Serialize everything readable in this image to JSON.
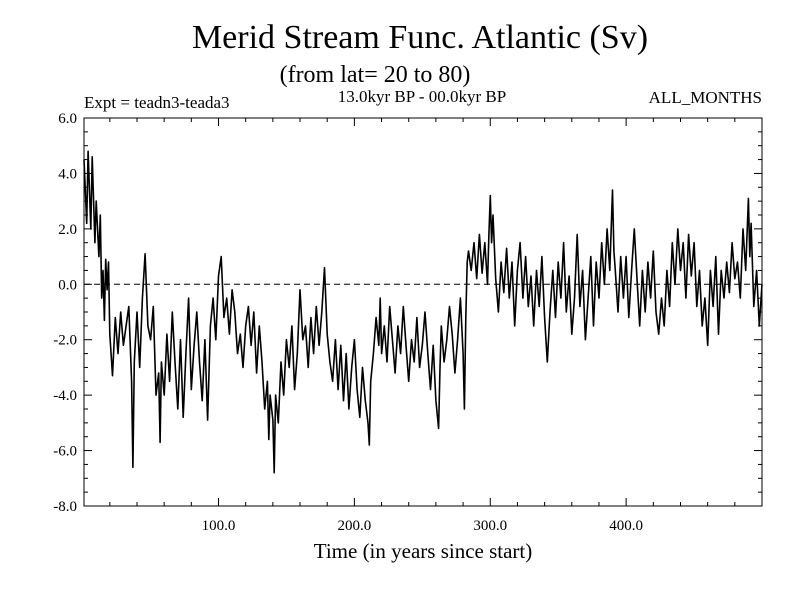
{
  "chart_data": {
    "type": "line",
    "title": "Merid Stream Func. Atlantic (Sv)",
    "subtitle": "(from lat= 20 to 80)",
    "experiment_label": "Expt = teadn3-teada3",
    "period_label": "13.0kyr BP - 00.0kyr BP",
    "months_label": "ALL_MONTHS",
    "xlabel": "Time (in years since start)",
    "ylabel": "",
    "xlim": [
      1,
      500
    ],
    "ylim": [
      -8,
      6
    ],
    "x_ticks": [
      {
        "value": 100,
        "label": "100.0"
      },
      {
        "value": 200,
        "label": "200.0"
      },
      {
        "value": 300,
        "label": "300.0"
      },
      {
        "value": 400,
        "label": "400.0"
      }
    ],
    "y_ticks": [
      {
        "value": 6,
        "label": "6.0"
      },
      {
        "value": 4,
        "label": "4.0"
      },
      {
        "value": 2,
        "label": "2.0"
      },
      {
        "value": 0,
        "label": "0.0"
      },
      {
        "value": -2,
        "label": "-2.0"
      },
      {
        "value": -4,
        "label": "-4.0"
      },
      {
        "value": -6,
        "label": "-6.0"
      },
      {
        "value": -8,
        "label": "-8.0"
      }
    ],
    "reference_line": {
      "y": 0,
      "style": "dashed"
    },
    "series": [
      {
        "name": "teadn3-teada3",
        "color": "#000000",
        "anchors": [
          [
            1,
            4.5
          ],
          [
            3,
            2.2
          ],
          [
            4,
            4.8
          ],
          [
            6,
            2.0
          ],
          [
            7,
            4.6
          ],
          [
            9,
            1.5
          ],
          [
            10,
            3.0
          ],
          [
            12,
            1.0
          ],
          [
            13,
            2.5
          ],
          [
            14,
            -0.5
          ],
          [
            15,
            0.5
          ],
          [
            16,
            -1.3
          ],
          [
            17,
            0.9
          ],
          [
            18,
            -0.2
          ],
          [
            19,
            0.8
          ],
          [
            20,
            -1.8
          ],
          [
            22,
            -3.3
          ],
          [
            24,
            -1.2
          ],
          [
            26,
            -2.5
          ],
          [
            28,
            -1.0
          ],
          [
            30,
            -2.2
          ],
          [
            32,
            -1.5
          ],
          [
            34,
            -0.8
          ],
          [
            36,
            -3.5
          ],
          [
            37,
            -6.6
          ],
          [
            38,
            -2.8
          ],
          [
            40,
            -1.0
          ],
          [
            42,
            -3.0
          ],
          [
            44,
            -0.5
          ],
          [
            46,
            1.1
          ],
          [
            48,
            -1.5
          ],
          [
            50,
            -2.0
          ],
          [
            52,
            -0.8
          ],
          [
            54,
            -4.0
          ],
          [
            56,
            -3.2
          ],
          [
            57,
            -5.7
          ],
          [
            58,
            -2.8
          ],
          [
            60,
            -4.0
          ],
          [
            62,
            -1.8
          ],
          [
            64,
            -3.5
          ],
          [
            66,
            -1.0
          ],
          [
            68,
            -2.8
          ],
          [
            70,
            -4.5
          ],
          [
            72,
            -2.0
          ],
          [
            74,
            -4.8
          ],
          [
            76,
            -2.5
          ],
          [
            78,
            -0.5
          ],
          [
            80,
            -3.8
          ],
          [
            82,
            -2.2
          ],
          [
            84,
            -1.0
          ],
          [
            86,
            -2.8
          ],
          [
            88,
            -4.2
          ],
          [
            90,
            -2.0
          ],
          [
            92,
            -4.9
          ],
          [
            94,
            -1.5
          ],
          [
            96,
            -0.5
          ],
          [
            98,
            -2.0
          ],
          [
            100,
            0.3
          ],
          [
            102,
            1.0
          ],
          [
            104,
            -1.2
          ],
          [
            106,
            -0.5
          ],
          [
            108,
            -1.8
          ],
          [
            110,
            -0.2
          ],
          [
            112,
            -1.0
          ],
          [
            114,
            -2.5
          ],
          [
            116,
            -1.8
          ],
          [
            118,
            -3.0
          ],
          [
            120,
            -1.5
          ],
          [
            122,
            -0.8
          ],
          [
            124,
            -2.2
          ],
          [
            126,
            -1.0
          ],
          [
            128,
            -3.2
          ],
          [
            130,
            -1.5
          ],
          [
            132,
            -2.8
          ],
          [
            134,
            -4.5
          ],
          [
            136,
            -3.5
          ],
          [
            137,
            -5.6
          ],
          [
            138,
            -4.0
          ],
          [
            140,
            -4.9
          ],
          [
            141,
            -6.8
          ],
          [
            142,
            -4.0
          ],
          [
            144,
            -5.0
          ],
          [
            146,
            -2.8
          ],
          [
            148,
            -4.0
          ],
          [
            150,
            -2.0
          ],
          [
            152,
            -3.0
          ],
          [
            154,
            -1.5
          ],
          [
            156,
            -3.8
          ],
          [
            158,
            -2.5
          ],
          [
            160,
            -0.2
          ],
          [
            162,
            -2.0
          ],
          [
            164,
            -1.5
          ],
          [
            166,
            -3.0
          ],
          [
            168,
            -1.2
          ],
          [
            170,
            -2.5
          ],
          [
            172,
            -0.8
          ],
          [
            174,
            -2.2
          ],
          [
            176,
            -1.0
          ],
          [
            178,
            0.6
          ],
          [
            180,
            -1.8
          ],
          [
            182,
            -2.8
          ],
          [
            184,
            -3.5
          ],
          [
            186,
            -2.0
          ],
          [
            188,
            -3.8
          ],
          [
            190,
            -2.2
          ],
          [
            192,
            -4.2
          ],
          [
            194,
            -2.5
          ],
          [
            196,
            -4.5
          ],
          [
            198,
            -3.0
          ],
          [
            200,
            -2.0
          ],
          [
            202,
            -3.8
          ],
          [
            204,
            -4.8
          ],
          [
            206,
            -3.0
          ],
          [
            208,
            -4.2
          ],
          [
            210,
            -5.0
          ],
          [
            211,
            -5.8
          ],
          [
            212,
            -3.5
          ],
          [
            214,
            -2.5
          ],
          [
            216,
            -1.2
          ],
          [
            218,
            -2.2
          ],
          [
            219,
            -0.5
          ],
          [
            220,
            -2.5
          ],
          [
            222,
            -1.5
          ],
          [
            224,
            -2.8
          ],
          [
            226,
            -0.8
          ],
          [
            228,
            -2.0
          ],
          [
            230,
            -3.2
          ],
          [
            232,
            -1.5
          ],
          [
            234,
            -2.5
          ],
          [
            236,
            -0.8
          ],
          [
            238,
            -2.2
          ],
          [
            240,
            -3.5
          ],
          [
            242,
            -2.0
          ],
          [
            244,
            -2.8
          ],
          [
            246,
            -1.2
          ],
          [
            248,
            -3.0
          ],
          [
            250,
            -2.2
          ],
          [
            252,
            -1.0
          ],
          [
            254,
            -2.5
          ],
          [
            256,
            -3.8
          ],
          [
            258,
            -2.2
          ],
          [
            260,
            -4.2
          ],
          [
            262,
            -5.2
          ],
          [
            263,
            -3.0
          ],
          [
            264,
            -1.5
          ],
          [
            266,
            -2.8
          ],
          [
            268,
            -2.0
          ],
          [
            270,
            -0.8
          ],
          [
            272,
            -1.8
          ],
          [
            274,
            -3.2
          ],
          [
            276,
            -2.0
          ],
          [
            278,
            -0.5
          ],
          [
            280,
            -2.5
          ],
          [
            281,
            -4.5
          ],
          [
            282,
            -1.2
          ],
          [
            283,
            0.8
          ],
          [
            284,
            1.2
          ],
          [
            286,
            0.5
          ],
          [
            288,
            1.5
          ],
          [
            290,
            0.2
          ],
          [
            292,
            1.8
          ],
          [
            294,
            0.4
          ],
          [
            296,
            1.5
          ],
          [
            298,
            0.0
          ],
          [
            299,
            1.8
          ],
          [
            300,
            3.2
          ],
          [
            301,
            1.5
          ],
          [
            302,
            2.5
          ],
          [
            304,
            0.2
          ],
          [
            306,
            -1.0
          ],
          [
            308,
            0.8
          ],
          [
            310,
            -0.3
          ],
          [
            312,
            1.3
          ],
          [
            314,
            -0.5
          ],
          [
            316,
            0.8
          ],
          [
            318,
            -1.5
          ],
          [
            320,
            0.5
          ],
          [
            322,
            1.5
          ],
          [
            324,
            -0.5
          ],
          [
            326,
            1.0
          ],
          [
            328,
            -0.8
          ],
          [
            330,
            0.3
          ],
          [
            332,
            -1.5
          ],
          [
            334,
            0.5
          ],
          [
            336,
            -0.8
          ],
          [
            338,
            1.0
          ],
          [
            340,
            -1.2
          ],
          [
            342,
            -2.8
          ],
          [
            344,
            -1.0
          ],
          [
            346,
            0.5
          ],
          [
            348,
            -1.2
          ],
          [
            350,
            0.8
          ],
          [
            352,
            -0.5
          ],
          [
            354,
            1.5
          ],
          [
            356,
            -1.0
          ],
          [
            358,
            0.3
          ],
          [
            360,
            -1.8
          ],
          [
            362,
            -0.5
          ],
          [
            364,
            1.8
          ],
          [
            366,
            -0.8
          ],
          [
            368,
            0.5
          ],
          [
            370,
            -2.0
          ],
          [
            372,
            -0.5
          ],
          [
            374,
            1.0
          ],
          [
            376,
            -1.5
          ],
          [
            378,
            0.8
          ],
          [
            380,
            -0.5
          ],
          [
            382,
            1.5
          ],
          [
            384,
            0.0
          ],
          [
            386,
            2.0
          ],
          [
            388,
            0.5
          ],
          [
            390,
            3.4
          ],
          [
            391,
            1.2
          ],
          [
            392,
            0.5
          ],
          [
            394,
            -1.0
          ],
          [
            396,
            1.0
          ],
          [
            398,
            -0.5
          ],
          [
            400,
            1.0
          ],
          [
            402,
            -1.2
          ],
          [
            404,
            0.5
          ],
          [
            406,
            2.0
          ],
          [
            408,
            0.2
          ],
          [
            410,
            -1.5
          ],
          [
            412,
            0.5
          ],
          [
            414,
            -1.0
          ],
          [
            416,
            0.8
          ],
          [
            418,
            -0.5
          ],
          [
            420,
            1.2
          ],
          [
            422,
            -1.0
          ],
          [
            424,
            -1.8
          ],
          [
            426,
            -0.5
          ],
          [
            428,
            -1.5
          ],
          [
            430,
            0.5
          ],
          [
            432,
            -0.8
          ],
          [
            434,
            1.5
          ],
          [
            436,
            0.0
          ],
          [
            438,
            2.0
          ],
          [
            440,
            0.5
          ],
          [
            442,
            1.5
          ],
          [
            444,
            -0.5
          ],
          [
            446,
            1.8
          ],
          [
            448,
            0.3
          ],
          [
            450,
            1.5
          ],
          [
            452,
            -0.8
          ],
          [
            454,
            0.5
          ],
          [
            456,
            -1.5
          ],
          [
            458,
            -0.5
          ],
          [
            460,
            -2.2
          ],
          [
            462,
            0.5
          ],
          [
            464,
            -0.8
          ],
          [
            466,
            1.0
          ],
          [
            468,
            -1.8
          ],
          [
            470,
            0.5
          ],
          [
            472,
            -0.5
          ],
          [
            474,
            0.8
          ],
          [
            476,
            -0.3
          ],
          [
            478,
            1.5
          ],
          [
            480,
            0.2
          ],
          [
            482,
            0.8
          ],
          [
            484,
            -0.5
          ],
          [
            486,
            2.0
          ],
          [
            488,
            0.5
          ],
          [
            490,
            3.1
          ],
          [
            491,
            1.0
          ],
          [
            492,
            2.2
          ],
          [
            494,
            -0.8
          ],
          [
            496,
            0.5
          ],
          [
            498,
            -1.5
          ],
          [
            500,
            0.0
          ]
        ]
      }
    ]
  }
}
